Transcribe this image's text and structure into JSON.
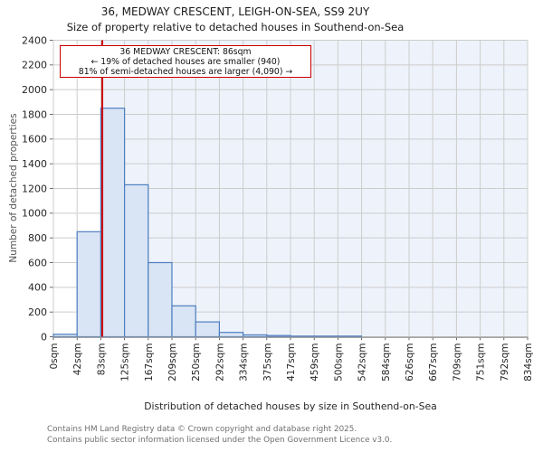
{
  "chart_data": {
    "type": "histogram",
    "title": "36, MEDWAY CRESCENT, LEIGH-ON-SEA, SS9 2UY",
    "subtitle": "Size of property relative to detached houses in Southend-on-Sea",
    "xlabel": "Distribution of detached houses by size in Southend-on-Sea",
    "ylabel": "Number of detached properties",
    "xtick_labels": [
      "0sqm",
      "42sqm",
      "83sqm",
      "125sqm",
      "167sqm",
      "209sqm",
      "250sqm",
      "292sqm",
      "334sqm",
      "375sqm",
      "417sqm",
      "459sqm",
      "500sqm",
      "542sqm",
      "584sqm",
      "626sqm",
      "667sqm",
      "709sqm",
      "751sqm",
      "792sqm",
      "834sqm"
    ],
    "ytick_labels": [
      "0",
      "200",
      "400",
      "600",
      "800",
      "1000",
      "1200",
      "1400",
      "1600",
      "1800",
      "2000",
      "2200",
      "2400"
    ],
    "ylim": [
      0,
      2400
    ],
    "x_max_sqm": 834,
    "bin_counts": [
      20,
      850,
      1850,
      1230,
      600,
      250,
      120,
      35,
      15,
      10,
      5,
      5,
      5,
      0,
      0,
      0,
      0,
      0,
      0,
      0
    ],
    "marker_value_sqm": 86,
    "legend": "none",
    "grid": "on",
    "colors": {
      "bar_fill": "#d9e4f4",
      "bar_stroke": "#4d7ec0",
      "marker_line": "#cc0000",
      "shade_right_bg": "#eef3fb",
      "grid_line": "#cccccc",
      "axis_spine": "#9a9a9a",
      "tick": "#444444"
    }
  },
  "annotation": {
    "line1": "36 MEDWAY CRESCENT: 86sqm",
    "line2": "← 19% of detached houses are smaller (940)",
    "line3": "81% of semi-detached houses are larger (4,090) →"
  },
  "footer": {
    "line1": "Contains HM Land Registry data © Crown copyright and database right 2025.",
    "line2": "Contains public sector information licensed under the Open Government Licence v3.0."
  }
}
